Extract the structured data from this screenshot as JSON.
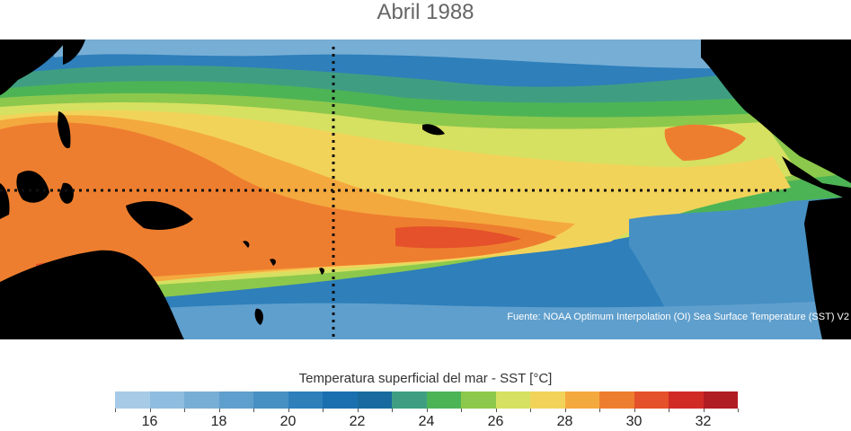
{
  "title": "Abril 1988",
  "source_note": "Fuente: NOAA Optimum Interpolation (OI) Sea Surface Temperature (SST) V2",
  "colorbar": {
    "label": "Temperatura superficial del mar - SST  [°C]",
    "tick_labels": [
      "16",
      "18",
      "20",
      "22",
      "24",
      "26",
      "28",
      "30",
      "32"
    ],
    "tick_values": [
      16,
      18,
      20,
      22,
      24,
      26,
      28,
      30,
      32
    ],
    "range": [
      15,
      33
    ],
    "step": 1,
    "colors": [
      "#a7cbe6",
      "#8fbddf",
      "#77aed6",
      "#5f9fcd",
      "#4790c3",
      "#2e7fba",
      "#1a6fae",
      "#186a9e",
      "#3f9e82",
      "#4db455",
      "#8cc84c",
      "#d6e061",
      "#f2d35a",
      "#f4a93e",
      "#ee7e2f",
      "#e4512a",
      "#d12b26",
      "#b01d22"
    ]
  },
  "map": {
    "region": "Pacífico tropical",
    "land_color": "#000000",
    "grid_lines": "punteadas: ecuador y meridiano 180°"
  }
}
